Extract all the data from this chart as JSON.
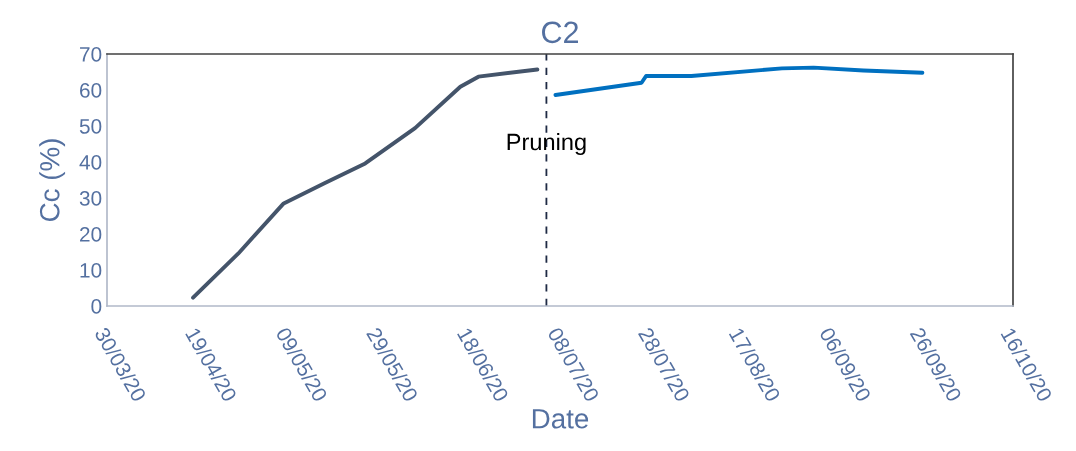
{
  "chart_data": {
    "type": "line",
    "title": "C2",
    "xlabel": "Date",
    "ylabel": "Cc (%)",
    "series": [
      {
        "color": "#44546a",
        "x": [
          "2020-04-18",
          "2020-04-28",
          "2020-05-08",
          "2020-05-17",
          "2020-05-26",
          "2020-06-06",
          "2020-06-16",
          "2020-06-20",
          "2020-07-03"
        ],
        "values": [
          2.3,
          14.6,
          28.5,
          34.1,
          39.6,
          49.4,
          60.9,
          63.7,
          65.7
        ]
      },
      {
        "color": "#0070c0",
        "x": [
          "2020-07-07",
          "2020-07-26",
          "2020-07-27",
          "2020-08-06",
          "2020-08-26",
          "2020-09-02",
          "2020-09-13",
          "2020-09-26"
        ],
        "values": [
          58.6,
          62.0,
          63.9,
          63.9,
          66.0,
          66.2,
          65.4,
          64.8
        ]
      }
    ],
    "ref_lines": [
      {
        "axis": "x",
        "value": "2020-07-05",
        "label": "Pruning",
        "color": "#1f2a44",
        "line_style": "dashed"
      }
    ],
    "xlim": [
      "2020-03-30",
      "2020-10-16"
    ],
    "xticks": [
      {
        "value": "2020-03-30",
        "label": "30/03/20"
      },
      {
        "value": "2020-04-19",
        "label": "19/04/20"
      },
      {
        "value": "2020-05-09",
        "label": "09/05/20"
      },
      {
        "value": "2020-05-29",
        "label": "29/05/20"
      },
      {
        "value": "2020-06-18",
        "label": "18/06/20"
      },
      {
        "value": "2020-07-08",
        "label": "08/07/20"
      },
      {
        "value": "2020-07-28",
        "label": "28/07/20"
      },
      {
        "value": "2020-08-17",
        "label": "17/08/20"
      },
      {
        "value": "2020-09-06",
        "label": "06/09/20"
      },
      {
        "value": "2020-09-26",
        "label": "26/09/20"
      },
      {
        "value": "2020-10-16",
        "label": "16/10/20"
      }
    ],
    "ylim": [
      0,
      70
    ],
    "yticks": [
      0,
      10,
      20,
      30,
      40,
      50,
      60,
      70
    ],
    "grid": false,
    "legend": false,
    "marker": "none",
    "line_style": "solid"
  }
}
